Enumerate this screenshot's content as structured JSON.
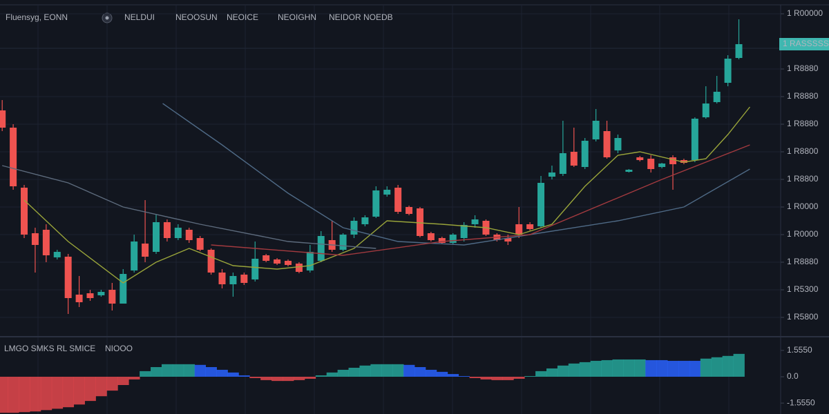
{
  "chart_data": [
    {
      "type": "candlestick",
      "title": "Fluensyg, EONN",
      "indicators": [
        "NELDUI",
        "NEOOSUN",
        "NEOICE",
        "NEOIGHN",
        "NEIDOR NOEDB"
      ],
      "up_color": "#26a69a",
      "down_color": "#ef5350",
      "xlim": [
        -0.2,
        70.8
      ],
      "ylim": [
        0,
        120
      ],
      "yticks": [
        {
          "value": 5,
          "label": "1 R5800"
        },
        {
          "value": 15,
          "label": "1 R5300"
        },
        {
          "value": 25,
          "label": "1 R8880"
        },
        {
          "value": 35,
          "label": "1 R0000"
        },
        {
          "value": 45,
          "label": "1 R0000"
        },
        {
          "value": 55,
          "label": "1 R8800"
        },
        {
          "value": 65,
          "label": "1 R8800"
        },
        {
          "value": 75,
          "label": "1 R8880"
        },
        {
          "value": 85,
          "label": "1 R8880"
        },
        {
          "value": 95,
          "label": "1 R8880"
        },
        {
          "value": 115,
          "label": "1 R00000"
        }
      ],
      "last_price_label": "1 RASSSSS",
      "grid": true,
      "open": [
        80,
        73.75,
        52,
        35.5,
        36.75,
        26.75,
        27,
        13.25,
        13.75,
        13,
        15,
        10,
        22,
        31.75,
        28.75,
        39.5,
        33.75,
        36.75,
        33.75,
        29.5,
        21.25,
        17,
        20.5,
        18.75,
        27.5,
        26,
        25.5,
        24.5,
        22,
        25.5,
        33,
        29.5,
        35,
        38.75,
        41.5,
        49.5,
        52,
        45,
        44.5,
        35.5,
        33.75,
        32,
        33.75,
        38.75,
        40,
        35,
        33.75,
        38.75,
        38.75,
        38,
        56,
        57,
        65,
        59.5,
        69.5,
        72.5,
        65.5,
        57.75,
        63,
        62.5,
        59.5,
        63,
        62,
        62,
        77.5,
        83,
        90,
        99
      ],
      "high": [
        83.75,
        75,
        53,
        37.5,
        38.75,
        29.5,
        28,
        20,
        15,
        15,
        17.5,
        22.5,
        35,
        47.5,
        42.5,
        40.5,
        38.75,
        37.5,
        34.5,
        30,
        22.5,
        21.25,
        21.25,
        32.5,
        28,
        26.5,
        26,
        25,
        31.25,
        36.25,
        40,
        35.5,
        41.25,
        42,
        52.5,
        52.5,
        53,
        45.5,
        45,
        36,
        34.25,
        35.5,
        39.5,
        42,
        40.5,
        35.5,
        35,
        45,
        39.5,
        56.25,
        60,
        76.25,
        73.75,
        70,
        80.5,
        76.25,
        71.25,
        58.75,
        63.5,
        63.75,
        61,
        63.75,
        62.5,
        77.5,
        88.75,
        92.5,
        100,
        113
      ],
      "low": [
        72.5,
        51.25,
        33.75,
        21.25,
        25,
        26,
        6.25,
        8.75,
        11,
        12.5,
        7.5,
        10,
        21.25,
        25,
        28,
        32.5,
        33,
        32,
        29,
        20.5,
        15.5,
        12.5,
        16.75,
        18,
        25,
        24,
        23.5,
        21,
        21.25,
        25,
        28.75,
        29,
        33.75,
        38,
        41,
        48.75,
        42.5,
        42,
        34,
        32.5,
        31.5,
        31.5,
        32.5,
        37.5,
        34.5,
        32.5,
        31.25,
        33.75,
        36.5,
        37.5,
        55,
        56.25,
        59.5,
        58.75,
        68.75,
        62.5,
        64.5,
        57.5,
        61.5,
        57.5,
        59,
        51.25,
        60.5,
        61.25,
        77,
        82.5,
        88.75,
        98.5
      ],
      "close": [
        73.75,
        52.5,
        35,
        31.25,
        27.5,
        28.75,
        12,
        10.5,
        12,
        14.25,
        10,
        20.75,
        32.5,
        27,
        39.5,
        33.75,
        37.5,
        33,
        29.5,
        21.25,
        17,
        20,
        17.5,
        26.25,
        25.5,
        24.5,
        24,
        21.5,
        28.75,
        34.5,
        29.5,
        35,
        40,
        41.25,
        51,
        51.25,
        43.25,
        42.5,
        34.5,
        33,
        32,
        35,
        38.5,
        40.5,
        35,
        33,
        32.5,
        35,
        37,
        53.75,
        57.5,
        64.5,
        60,
        69,
        76.25,
        63,
        70,
        58.5,
        62,
        58.75,
        60.75,
        60.5,
        61,
        77,
        82.5,
        86.75,
        98.75,
        104
      ],
      "lines": [
        {
          "color": "#9aa53a",
          "x": [
            2,
            6,
            11,
            14,
            17,
            21,
            25,
            28,
            32,
            35,
            40,
            44,
            47,
            50,
            53,
            56,
            58,
            62,
            64,
            66,
            68
          ],
          "values": [
            47.5,
            32.5,
            17.5,
            25,
            30,
            23.75,
            22.5,
            23.75,
            30,
            40,
            38.75,
            37.5,
            35,
            38.75,
            52.5,
            63.75,
            65,
            61.25,
            62.5,
            71.25,
            81.25
          ]
        },
        {
          "color": "#4f6a86",
          "x": [
            14.6,
            20,
            26,
            31,
            36,
            42,
            48,
            56,
            62,
            68
          ],
          "values": [
            82.5,
            67.5,
            50,
            37.5,
            32.5,
            31.25,
            35,
            40,
            45,
            58.75
          ]
        },
        {
          "color": "#5d6b7d",
          "x": [
            0,
            6,
            11,
            18,
            26,
            34
          ],
          "values": [
            60,
            53.75,
            45,
            38.75,
            32.5,
            30
          ]
        },
        {
          "color": "#a33a3f",
          "x": [
            19,
            31,
            40,
            48,
            60,
            68
          ],
          "values": [
            31.25,
            27.5,
            32.5,
            35,
            55,
            67.5
          ]
        }
      ]
    },
    {
      "type": "histogram-oscillator",
      "title": "LMGO  SMKS RL SMICE",
      "indicator_value": "NIOOO",
      "xlim": [
        -0.2,
        70.8
      ],
      "ylim": [
        -2.2,
        2.2
      ],
      "yticks": [
        {
          "value": 1.555,
          "label": "1.5550"
        },
        {
          "value": 0,
          "label": "0.0"
        },
        {
          "value": -1.555,
          "label": "-1.5550"
        }
      ],
      "values": [
        -2.13,
        -2.13,
        -2.09,
        -2.05,
        -1.97,
        -1.89,
        -1.8,
        -1.64,
        -1.43,
        -1.15,
        -0.82,
        -0.49,
        -0.16,
        0.33,
        0.57,
        0.74,
        0.74,
        0.74,
        0.7,
        0.57,
        0.41,
        0.25,
        0.08,
        -0.08,
        -0.2,
        -0.25,
        -0.25,
        -0.2,
        -0.12,
        0.08,
        0.25,
        0.41,
        0.53,
        0.66,
        0.74,
        0.74,
        0.74,
        0.7,
        0.57,
        0.41,
        0.29,
        0.16,
        0.04,
        -0.08,
        -0.16,
        -0.2,
        -0.2,
        -0.12,
        0.04,
        0.33,
        0.49,
        0.66,
        0.78,
        0.86,
        0.94,
        0.98,
        1.02,
        1.02,
        1.02,
        0.98,
        0.98,
        0.94,
        0.94,
        0.94,
        1.07,
        1.15,
        1.23,
        1.35
      ],
      "colors": [
        "#e5484d",
        "#e5484d",
        "#e5484d",
        "#e5484d",
        "#e5484d",
        "#e5484d",
        "#e5484d",
        "#e5484d",
        "#e5484d",
        "#e5484d",
        "#e5484d",
        "#e5484d",
        "#e5484d",
        "#26a69a",
        "#26a69a",
        "#26a69a",
        "#26a69a",
        "#26a69a",
        "#2962ff",
        "#2962ff",
        "#2962ff",
        "#2962ff",
        "#2962ff",
        "#e5484d",
        "#e5484d",
        "#e5484d",
        "#e5484d",
        "#e5484d",
        "#e5484d",
        "#26a69a",
        "#26a69a",
        "#26a69a",
        "#26a69a",
        "#26a69a",
        "#26a69a",
        "#26a69a",
        "#26a69a",
        "#2962ff",
        "#2962ff",
        "#2962ff",
        "#2962ff",
        "#2962ff",
        "#2962ff",
        "#e5484d",
        "#e5484d",
        "#e5484d",
        "#e5484d",
        "#e5484d",
        "#26a69a",
        "#26a69a",
        "#26a69a",
        "#26a69a",
        "#26a69a",
        "#26a69a",
        "#26a69a",
        "#26a69a",
        "#26a69a",
        "#26a69a",
        "#26a69a",
        "#2962ff",
        "#2962ff",
        "#2962ff",
        "#2962ff",
        "#2962ff",
        "#26a69a",
        "#26a69a",
        "#26a69a",
        "#26a69a"
      ]
    }
  ]
}
